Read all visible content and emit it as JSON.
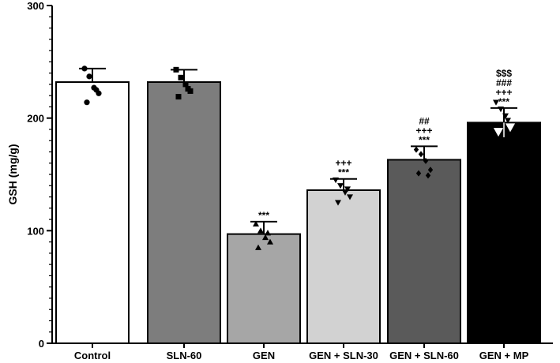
{
  "chart_data": {
    "type": "bar",
    "title": "",
    "xlabel": "",
    "ylabel": "GSH (mg/g)",
    "ylim": [
      0,
      300
    ],
    "yticks": [
      0,
      100,
      200,
      300
    ],
    "categories": [
      "Control",
      "SLN-60",
      "GEN",
      "GEN + SLN-30",
      "GEN + SLN-60",
      "GEN + MP"
    ],
    "values": [
      232,
      232,
      97,
      136,
      163,
      196
    ],
    "errors": [
      12,
      11,
      11,
      10,
      12,
      13
    ],
    "bar_colors": [
      "#ffffff",
      "#7d7d7d",
      "#a6a6a6",
      "#d2d2d2",
      "#5a5a5a",
      "#000000"
    ],
    "point_markers": [
      "circle",
      "square",
      "triangle-up",
      "triangle-down",
      "diamond",
      "triangle-down-open"
    ],
    "points": [
      [
        244,
        237,
        227,
        222,
        214,
        225
      ],
      [
        243,
        236,
        230,
        224,
        219,
        226
      ],
      [
        106,
        100,
        94,
        90,
        85,
        98
      ],
      [
        145,
        140,
        134,
        130,
        125,
        137
      ],
      [
        172,
        168,
        162,
        154,
        151,
        149
      ],
      [
        214,
        208,
        202,
        192,
        188,
        198
      ]
    ],
    "significance": [
      [],
      [],
      [
        "***"
      ],
      [
        "***",
        "+++"
      ],
      [
        "***",
        "+++",
        "##"
      ],
      [
        "***",
        "+++",
        "###",
        "$$$"
      ]
    ]
  }
}
